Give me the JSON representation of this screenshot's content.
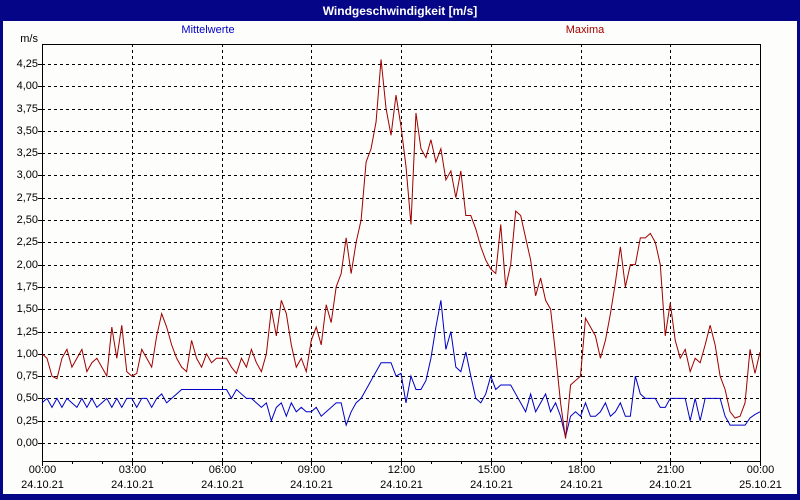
{
  "window": {
    "title": "Windgeschwindigkeit [m/s]"
  },
  "colors": {
    "frame": "#050587",
    "titlebar": "#050587",
    "title_text": "#ffffff",
    "background": "#fdfdfb",
    "grid": "#000000",
    "mean_series": "#0000c8",
    "max_series": "#a00000"
  },
  "chart_data": {
    "type": "line",
    "title": "Windgeschwindigkeit [m/s]",
    "y_unit": "m/s",
    "ylabel": "m/s",
    "xlabel": "",
    "ylim": [
      0,
      4.47
    ],
    "y_tick_step": 0.25,
    "grid": "dashed-black",
    "legend_position": "top",
    "x_start_time": "00:00",
    "interval_minutes": 10,
    "y_tick_labels": [
      "0,00",
      "0,25",
      "0,50",
      "0,75",
      "1,00",
      "1,25",
      "1,50",
      "1,75",
      "2,00",
      "2,25",
      "2,50",
      "2,75",
      "3,00",
      "3,25",
      "3,50",
      "3,75",
      "4,00",
      "4,25"
    ],
    "x_ticks": [
      {
        "hour": 0,
        "time": "00:00",
        "date": "24.10.21"
      },
      {
        "hour": 3,
        "time": "03:00",
        "date": "24.10.21"
      },
      {
        "hour": 6,
        "time": "06:00",
        "date": "24.10.21"
      },
      {
        "hour": 9,
        "time": "09:00",
        "date": "24.10.21"
      },
      {
        "hour": 12,
        "time": "12:00",
        "date": "24.10.21"
      },
      {
        "hour": 15,
        "time": "15:00",
        "date": "24.10.21"
      },
      {
        "hour": 18,
        "time": "18:00",
        "date": "24.10.21"
      },
      {
        "hour": 21,
        "time": "21:00",
        "date": "24.10.21"
      },
      {
        "hour": 24,
        "time": "00:00",
        "date": "25.10.21"
      }
    ],
    "series": [
      {
        "name": "Mittelwerte",
        "color": "#0000c8",
        "values": [
          0.45,
          0.5,
          0.4,
          0.5,
          0.4,
          0.5,
          0.45,
          0.4,
          0.5,
          0.4,
          0.5,
          0.4,
          0.45,
          0.5,
          0.4,
          0.5,
          0.4,
          0.5,
          0.5,
          0.4,
          0.5,
          0.5,
          0.4,
          0.5,
          0.55,
          0.45,
          0.5,
          0.55,
          0.6,
          0.6,
          0.6,
          0.6,
          0.6,
          0.6,
          0.6,
          0.6,
          0.6,
          0.6,
          0.5,
          0.6,
          0.55,
          0.5,
          0.5,
          0.45,
          0.4,
          0.45,
          0.25,
          0.4,
          0.45,
          0.3,
          0.45,
          0.35,
          0.4,
          0.35,
          0.35,
          0.4,
          0.3,
          0.35,
          0.4,
          0.45,
          0.45,
          0.2,
          0.35,
          0.45,
          0.5,
          0.6,
          0.7,
          0.8,
          0.9,
          0.9,
          0.9,
          0.75,
          0.78,
          0.45,
          0.75,
          0.6,
          0.6,
          0.7,
          0.95,
          1.3,
          1.6,
          1.05,
          1.25,
          0.85,
          0.8,
          1.02,
          0.75,
          0.5,
          0.45,
          0.55,
          0.75,
          0.6,
          0.65,
          0.65,
          0.65,
          0.55,
          0.45,
          0.35,
          0.55,
          0.35,
          0.45,
          0.55,
          0.35,
          0.45,
          0.3,
          0.07,
          0.3,
          0.35,
          0.3,
          0.45,
          0.3,
          0.3,
          0.35,
          0.45,
          0.3,
          0.35,
          0.45,
          0.3,
          0.3,
          0.75,
          0.55,
          0.5,
          0.5,
          0.5,
          0.4,
          0.4,
          0.5,
          0.5,
          0.5,
          0.5,
          0.25,
          0.5,
          0.25,
          0.5,
          0.5,
          0.5,
          0.5,
          0.3,
          0.2,
          0.2,
          0.2,
          0.2,
          0.28,
          0.32,
          0.35
        ]
      },
      {
        "name": "Maxima",
        "color": "#a00000",
        "values": [
          1.0,
          0.95,
          0.75,
          0.72,
          0.95,
          1.05,
          0.85,
          0.95,
          1.05,
          0.8,
          0.9,
          0.95,
          0.85,
          0.75,
          1.3,
          0.95,
          1.32,
          0.8,
          0.75,
          0.78,
          1.05,
          0.95,
          0.85,
          1.2,
          1.45,
          1.3,
          1.1,
          0.95,
          0.85,
          0.8,
          1.15,
          0.95,
          0.85,
          1.0,
          0.9,
          0.95,
          0.95,
          0.95,
          0.85,
          0.78,
          0.95,
          0.85,
          1.05,
          0.9,
          0.8,
          1.0,
          1.5,
          1.2,
          1.6,
          1.45,
          1.1,
          0.85,
          0.95,
          0.8,
          1.15,
          1.3,
          1.1,
          1.55,
          1.35,
          1.75,
          1.9,
          2.3,
          1.9,
          2.25,
          2.5,
          3.15,
          3.3,
          3.6,
          4.3,
          3.75,
          3.45,
          3.9,
          3.55,
          3.1,
          2.45,
          3.7,
          3.3,
          3.2,
          3.4,
          3.15,
          3.3,
          2.95,
          3.05,
          2.75,
          3.05,
          2.55,
          2.55,
          2.4,
          2.2,
          2.05,
          1.95,
          1.9,
          2.45,
          1.75,
          2.0,
          2.6,
          2.55,
          2.3,
          2.05,
          1.65,
          1.85,
          1.6,
          1.5,
          1.0,
          0.45,
          0.05,
          0.65,
          0.7,
          0.75,
          1.4,
          1.3,
          1.2,
          0.95,
          1.15,
          1.45,
          1.8,
          2.2,
          1.75,
          2.0,
          2.0,
          2.3,
          2.3,
          2.35,
          2.25,
          2.0,
          1.2,
          1.57,
          1.15,
          0.95,
          1.05,
          0.8,
          0.95,
          0.9,
          1.1,
          1.32,
          1.1,
          0.75,
          0.6,
          0.35,
          0.28,
          0.3,
          0.45,
          1.05,
          0.78,
          1.02
        ]
      }
    ]
  }
}
